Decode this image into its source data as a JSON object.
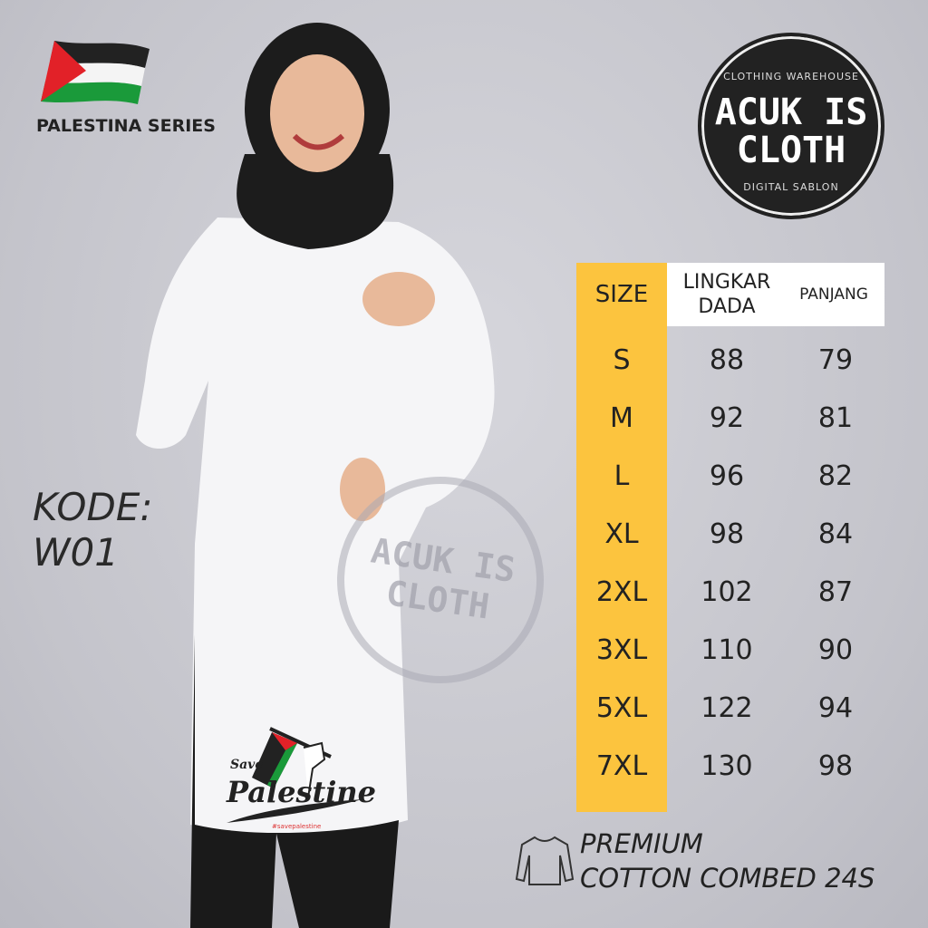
{
  "series_label": "PALESTINA SERIES",
  "logo": {
    "top_text": "CLOTHING WAREHOUSE",
    "name_line1": "ACUK IS",
    "name_line2": "CLOTH",
    "bottom_text": "DIGITAL SABLON"
  },
  "kode": {
    "label": "KODE:",
    "value": "W01"
  },
  "size_table": {
    "headers": [
      "SIZE",
      "LINGKAR DADA",
      "PANJANG"
    ],
    "rows": [
      [
        "S",
        "88",
        "79"
      ],
      [
        "M",
        "92",
        "81"
      ],
      [
        "L",
        "96",
        "82"
      ],
      [
        "XL",
        "98",
        "84"
      ],
      [
        "2XL",
        "102",
        "87"
      ],
      [
        "3XL",
        "110",
        "90"
      ],
      [
        "5XL",
        "122",
        "94"
      ],
      [
        "7XL",
        "130",
        "98"
      ]
    ]
  },
  "material": {
    "line1": "PREMIUM",
    "line2": "COTTON COMBED 24S"
  },
  "print": {
    "line1": "Save",
    "line2": "Palestine",
    "hashtag": "#savepalestine"
  },
  "colors": {
    "accent": "#fcc43e",
    "logo": "#222222",
    "flag_red": "#e22128",
    "flag_green": "#1a9a3a"
  }
}
